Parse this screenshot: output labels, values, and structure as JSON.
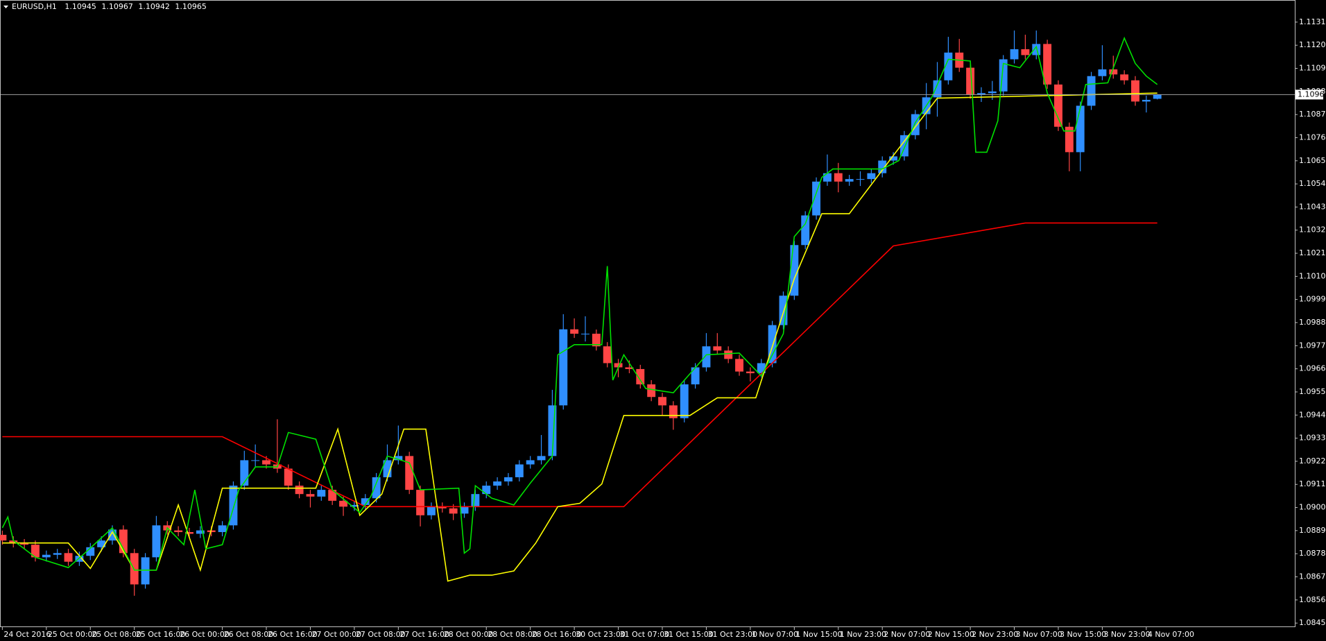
{
  "chart_data": {
    "type": "candlestick",
    "title": "EURUSD,H1",
    "up_color": "#2f8fff",
    "down_color": "#ff4545",
    "price_line_color": "#a0a0a0",
    "grid": false,
    "xlim": [
      -0.3,
      235
    ],
    "ylim": [
      1.08434,
      1.11402
    ],
    "x": [
      0,
      2,
      4,
      6,
      8,
      10,
      12,
      14,
      16,
      18,
      20,
      22,
      24,
      26,
      28,
      30,
      32,
      34,
      36,
      38,
      40,
      42,
      44,
      46,
      48,
      50,
      52,
      54,
      56,
      58,
      60,
      62,
      64,
      66,
      68,
      70,
      72,
      74,
      76,
      78,
      80,
      82,
      84,
      86,
      88,
      90,
      92,
      94,
      96,
      98,
      100,
      102,
      104,
      106,
      108,
      110,
      112,
      114,
      116,
      118,
      120,
      122,
      124,
      126,
      128,
      130,
      132,
      134,
      136,
      138,
      140,
      142,
      144,
      146,
      148,
      150,
      152,
      154,
      156,
      158,
      160,
      162,
      164,
      166,
      168,
      170,
      172,
      174,
      176,
      178,
      180,
      182,
      184,
      186,
      188,
      190,
      192,
      194,
      196,
      198,
      200,
      202,
      204,
      206,
      208,
      210
    ],
    "open": [
      1.0887,
      1.08843,
      1.0883,
      1.08823,
      1.08763,
      1.08775,
      1.08783,
      1.08742,
      1.0877,
      1.08811,
      1.08843,
      1.08895,
      1.08783,
      1.08634,
      1.08763,
      1.08915,
      1.08891,
      1.08883,
      1.08875,
      1.08891,
      1.08883,
      1.08915,
      1.09104,
      1.09225,
      1.09225,
      1.09205,
      1.09185,
      1.09104,
      1.09064,
      1.09052,
      1.09084,
      1.09032,
      1.09004,
      1.09012,
      1.09044,
      1.09144,
      1.09225,
      1.09245,
      1.09084,
      1.08963,
      1.09004,
      1.08996,
      1.08971,
      1.09004,
      1.09064,
      1.09104,
      1.09124,
      1.09144,
      1.09205,
      1.09225,
      1.09245,
      1.09486,
      1.09848,
      1.09827,
      1.09827,
      1.09767,
      1.09687,
      1.09667,
      1.09659,
      1.09586,
      1.09526,
      1.09486,
      1.09425,
      1.09586,
      1.09667,
      1.09767,
      1.09747,
      1.09707,
      1.09647,
      1.09639,
      1.09687,
      1.09868,
      1.10008,
      1.10249,
      1.1039,
      1.10551,
      1.10591,
      1.10551,
      1.10563,
      1.10563,
      1.10591,
      1.10651,
      1.10671,
      1.10772,
      1.10872,
      1.10952,
      1.11033,
      1.11165,
      1.11093,
      1.10965,
      1.10972,
      1.1098,
      1.11133,
      1.11181,
      1.11153,
      1.11206,
      1.11013,
      1.10812,
      1.10691,
      1.10912,
      1.11053,
      1.11085,
      1.11061,
      1.11033,
      1.10932,
      1.10945
    ],
    "high": [
      1.0889,
      1.08863,
      1.0885,
      1.08843,
      1.08795,
      1.08803,
      1.08803,
      1.0879,
      1.08831,
      1.08863,
      1.08915,
      1.08915,
      1.08803,
      1.08783,
      1.0896,
      1.08935,
      1.08911,
      1.08903,
      1.08911,
      1.08911,
      1.08935,
      1.09124,
      1.0927,
      1.093,
      1.09245,
      1.0942,
      1.09205,
      1.09124,
      1.09084,
      1.09104,
      1.09104,
      1.09052,
      1.09032,
      1.09064,
      1.09164,
      1.093,
      1.0939,
      1.09265,
      1.09104,
      1.09024,
      1.09024,
      1.09016,
      1.09024,
      1.09084,
      1.09124,
      1.09144,
      1.09164,
      1.09225,
      1.09245,
      1.09345,
      1.0956,
      1.0992,
      1.099,
      1.0991,
      1.09847,
      1.09787,
      1.09707,
      1.097,
      1.09679,
      1.09606,
      1.09546,
      1.09506,
      1.09606,
      1.09687,
      1.0983,
      1.0983,
      1.09767,
      1.09727,
      1.09667,
      1.09707,
      1.09888,
      1.10028,
      1.10269,
      1.1041,
      1.10571,
      1.1068,
      1.1064,
      1.10583,
      1.106,
      1.10611,
      1.10671,
      1.10691,
      1.10792,
      1.10892,
      1.1102,
      1.1112,
      1.1124,
      1.1123,
      1.11113,
      1.11,
      1.1103,
      1.11153,
      1.1127,
      1.1125,
      1.1127,
      1.11226,
      1.11033,
      1.10832,
      1.10932,
      1.11073,
      1.112,
      1.1115,
      1.11081,
      1.11053,
      1.1096,
      1.10967
    ],
    "low": [
      1.08823,
      1.0881,
      1.08803,
      1.08743,
      1.08743,
      1.08755,
      1.08722,
      1.08722,
      1.0875,
      1.08791,
      1.08823,
      1.08763,
      1.0858,
      1.08614,
      1.08743,
      1.08871,
      1.08863,
      1.08855,
      1.08855,
      1.08863,
      1.08863,
      1.08895,
      1.09084,
      1.0919,
      1.09185,
      1.09165,
      1.09084,
      1.09044,
      1.09,
      1.09032,
      1.09012,
      1.0896,
      1.08984,
      1.08992,
      1.09024,
      1.09124,
      1.09205,
      1.09064,
      1.0891,
      1.08943,
      1.08976,
      1.0894,
      1.08951,
      1.08984,
      1.09044,
      1.09084,
      1.09104,
      1.09124,
      1.09185,
      1.09205,
      1.09225,
      1.09466,
      1.09807,
      1.0979,
      1.09747,
      1.09667,
      1.0962,
      1.09639,
      1.09566,
      1.09506,
      1.0944,
      1.0937,
      1.09405,
      1.09566,
      1.09647,
      1.09727,
      1.09687,
      1.09627,
      1.096,
      1.09619,
      1.09667,
      1.09848,
      1.09988,
      1.10229,
      1.1037,
      1.10531,
      1.105,
      1.10531,
      1.1053,
      1.10543,
      1.10571,
      1.10631,
      1.10651,
      1.10752,
      1.108,
      1.1086,
      1.11013,
      1.11073,
      1.10945,
      1.1093,
      1.1094,
      1.1096,
      1.11113,
      1.11133,
      1.11133,
      1.10993,
      1.10792,
      1.106,
      1.106,
      1.10892,
      1.11033,
      1.11041,
      1.11013,
      1.10912,
      1.1088,
      1.10942
    ],
    "close": [
      1.08843,
      1.0883,
      1.08823,
      1.08763,
      1.08775,
      1.08783,
      1.08742,
      1.0877,
      1.08811,
      1.08843,
      1.08895,
      1.08783,
      1.08634,
      1.08763,
      1.08915,
      1.08891,
      1.08883,
      1.08875,
      1.08891,
      1.08883,
      1.08915,
      1.09104,
      1.09225,
      1.09225,
      1.09205,
      1.09185,
      1.09104,
      1.09064,
      1.09052,
      1.09084,
      1.09032,
      1.09004,
      1.09012,
      1.09044,
      1.09144,
      1.09225,
      1.09245,
      1.09084,
      1.08963,
      1.09004,
      1.08996,
      1.08971,
      1.09004,
      1.09064,
      1.09104,
      1.09124,
      1.09144,
      1.09205,
      1.09225,
      1.09245,
      1.09486,
      1.09848,
      1.09827,
      1.09827,
      1.09767,
      1.09687,
      1.09667,
      1.09659,
      1.09586,
      1.09526,
      1.09486,
      1.09425,
      1.09586,
      1.09667,
      1.09767,
      1.09747,
      1.09707,
      1.09647,
      1.09639,
      1.09687,
      1.09868,
      1.10008,
      1.10249,
      1.1039,
      1.10551,
      1.10591,
      1.10551,
      1.10563,
      1.10563,
      1.10591,
      1.10651,
      1.10671,
      1.10772,
      1.10872,
      1.10952,
      1.11033,
      1.11165,
      1.11093,
      1.10965,
      1.10972,
      1.1098,
      1.11133,
      1.11181,
      1.11153,
      1.11206,
      1.11013,
      1.10812,
      1.10691,
      1.10912,
      1.11053,
      1.11085,
      1.11061,
      1.11033,
      1.10932,
      1.1094,
      1.10965
    ],
    "lines": [
      {
        "color": "#ff0000",
        "x": [
          0,
          40,
          66,
          113,
          162,
          186,
          210
        ],
        "values": [
          1.09337,
          1.09337,
          1.09004,
          1.09004,
          1.10245,
          1.10354,
          1.10354
        ]
      },
      {
        "color": "#ffff00",
        "x": [
          0,
          12,
          16,
          20,
          24,
          28,
          32,
          36,
          40,
          57,
          61,
          65,
          69,
          73,
          77,
          81,
          85,
          89,
          93,
          97,
          101,
          105,
          109,
          113,
          125,
          130,
          137,
          144,
          149,
          154,
          162,
          170,
          210
        ],
        "values": [
          1.08831,
          1.08831,
          1.0871,
          1.08883,
          1.08702,
          1.08702,
          1.09012,
          1.08702,
          1.09092,
          1.09092,
          1.09373,
          1.08963,
          1.09064,
          1.09373,
          1.09373,
          1.0865,
          1.08678,
          1.08678,
          1.08698,
          1.08831,
          1.09004,
          1.0902,
          1.09112,
          1.09438,
          1.09438,
          1.09522,
          1.09522,
          1.10089,
          1.10398,
          1.10398,
          1.10675,
          1.10948,
          1.10972
        ]
      },
      {
        "color": "#00e000",
        "x": [
          0,
          1,
          2,
          6,
          12,
          15,
          20,
          24,
          28,
          30,
          33,
          35,
          37,
          40,
          43,
          46,
          50,
          52,
          57,
          60,
          65,
          67,
          70,
          74,
          76,
          83,
          84,
          85,
          86,
          89,
          93,
          96,
          100,
          101,
          104,
          109,
          110,
          111,
          113,
          116,
          117,
          122,
          127,
          128,
          134,
          138,
          142,
          144,
          146,
          149,
          151,
          160,
          163,
          166,
          169,
          172,
          176,
          177,
          179,
          181,
          182,
          185,
          188,
          190,
          193,
          195,
          197,
          201,
          204,
          206,
          208,
          210
        ],
        "values": [
          1.08903,
          1.08955,
          1.08843,
          1.08763,
          1.08714,
          1.08783,
          1.08903,
          1.08702,
          1.08702,
          1.08903,
          1.08823,
          1.09084,
          1.08803,
          1.08823,
          1.09084,
          1.09193,
          1.09193,
          1.09357,
          1.09325,
          1.09084,
          1.08976,
          1.09052,
          1.09245,
          1.09213,
          1.09084,
          1.09092,
          1.08783,
          1.08803,
          1.09104,
          1.09044,
          1.09012,
          1.09116,
          1.09245,
          1.09727,
          1.09775,
          1.09775,
          1.10149,
          1.09606,
          1.09727,
          1.09606,
          1.09566,
          1.09546,
          1.09695,
          1.09727,
          1.09735,
          1.09626,
          1.09827,
          1.10289,
          1.1035,
          1.10571,
          1.10611,
          1.10611,
          1.10651,
          1.10832,
          1.10952,
          1.11133,
          1.11125,
          1.10691,
          1.10691,
          1.1084,
          1.11113,
          1.11093,
          1.11193,
          1.10972,
          1.10792,
          1.10792,
          1.11013,
          1.11021,
          1.11234,
          1.11113,
          1.11053,
          1.11013
        ]
      }
    ],
    "yticks": [
      {
        "value": 1.1131,
        "label": "1.11310"
      },
      {
        "value": 1.112,
        "label": "1.11200"
      },
      {
        "value": 1.1109,
        "label": "1.11090"
      },
      {
        "value": 1.1098,
        "label": "1.10980"
      },
      {
        "value": 1.1087,
        "label": "1.10870"
      },
      {
        "value": 1.1076,
        "label": "1.10760"
      },
      {
        "value": 1.1065,
        "label": "1.10650"
      },
      {
        "value": 1.1054,
        "label": "1.10540"
      },
      {
        "value": 1.1043,
        "label": "1.10430"
      },
      {
        "value": 1.1032,
        "label": "1.10320"
      },
      {
        "value": 1.1021,
        "label": "1.10210"
      },
      {
        "value": 1.101,
        "label": "1.10100"
      },
      {
        "value": 1.0999,
        "label": "1.09990"
      },
      {
        "value": 1.0988,
        "label": "1.09880"
      },
      {
        "value": 1.0977,
        "label": "1.09770"
      },
      {
        "value": 1.0966,
        "label": "1.09660"
      },
      {
        "value": 1.0955,
        "label": "1.09550"
      },
      {
        "value": 1.0944,
        "label": "1.09440"
      },
      {
        "value": 1.0933,
        "label": "1.09330"
      },
      {
        "value": 1.0922,
        "label": "1.09220"
      },
      {
        "value": 1.0911,
        "label": "1.09110"
      },
      {
        "value": 1.09,
        "label": "1.09000"
      },
      {
        "value": 1.0889,
        "label": "1.08890"
      },
      {
        "value": 1.0878,
        "label": "1.08780"
      },
      {
        "value": 1.0867,
        "label": "1.08670"
      },
      {
        "value": 1.0856,
        "label": "1.08560"
      },
      {
        "value": 1.0845,
        "label": "1.08450"
      }
    ],
    "xticks": [
      {
        "value": 0,
        "label": "24 Oct 2016"
      },
      {
        "value": 8,
        "label": "25 Oct 00:00"
      },
      {
        "value": 16,
        "label": "25 Oct 08:00"
      },
      {
        "value": 24,
        "label": "25 Oct 16:00"
      },
      {
        "value": 32,
        "label": "26 Oct 00:00"
      },
      {
        "value": 40,
        "label": "26 Oct 08:00"
      },
      {
        "value": 48,
        "label": "26 Oct 16:00"
      },
      {
        "value": 56,
        "label": "27 Oct 00:00"
      },
      {
        "value": 64,
        "label": "27 Oct 08:00"
      },
      {
        "value": 72,
        "label": "27 Oct 16:00"
      },
      {
        "value": 80,
        "label": "28 Oct 00:00"
      },
      {
        "value": 88,
        "label": "28 Oct 08:00"
      },
      {
        "value": 96,
        "label": "28 Oct 16:00"
      },
      {
        "value": 104,
        "label": "30 Oct 23:00"
      },
      {
        "value": 112,
        "label": "31 Oct 07:00"
      },
      {
        "value": 120,
        "label": "31 Oct 15:00"
      },
      {
        "value": 128,
        "label": "31 Oct 23:00"
      },
      {
        "value": 136,
        "label": "1 Nov 07:00"
      },
      {
        "value": 144,
        "label": "1 Nov 15:00"
      },
      {
        "value": 152,
        "label": "1 Nov 23:00"
      },
      {
        "value": 160,
        "label": "2 Nov 07:00"
      },
      {
        "value": 168,
        "label": "2 Nov 15:00"
      },
      {
        "value": 176,
        "label": "2 Nov 23:00"
      },
      {
        "value": 184,
        "label": "3 Nov 07:00"
      },
      {
        "value": 192,
        "label": "3 Nov 15:00"
      },
      {
        "value": 200,
        "label": "3 Nov 23:00"
      },
      {
        "value": 208,
        "label": "4 Nov 07:00"
      }
    ]
  }
}
